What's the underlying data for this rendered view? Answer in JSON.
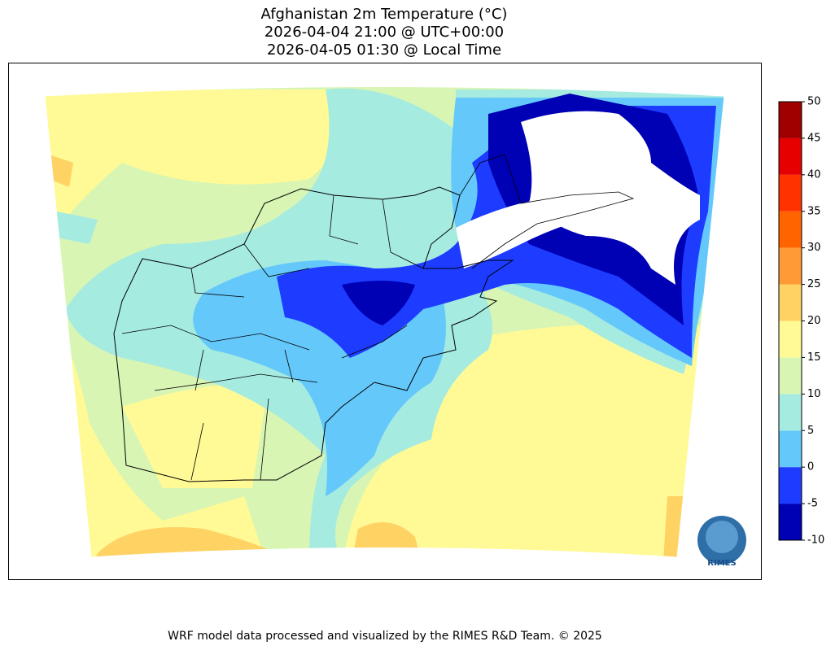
{
  "header": {
    "title": [
      "Afghanistan 2m Temperature (°C)",
      "2026-04-04 21:00 @ UTC+00:00",
      "2026-04-05 01:30 @ Local Time"
    ]
  },
  "colorbar": {
    "lim": [
      -10,
      50
    ],
    "ticks": [
      -10,
      -5,
      0,
      5,
      10,
      15,
      20,
      25,
      30,
      35,
      40,
      45,
      50
    ],
    "colors": [
      "#0000b4",
      "#1e3cff",
      "#64c8fa",
      "#a6ebe0",
      "#d8f5b4",
      "#fffa96",
      "#ffd264",
      "#ff9b37",
      "#ff6400",
      "#ff3200",
      "#e60000",
      "#a00000"
    ]
  },
  "logo": {
    "text": "RIMES"
  },
  "footer": "WRF model data processed and visualized by the RIMES R&D Team. © 2025"
}
